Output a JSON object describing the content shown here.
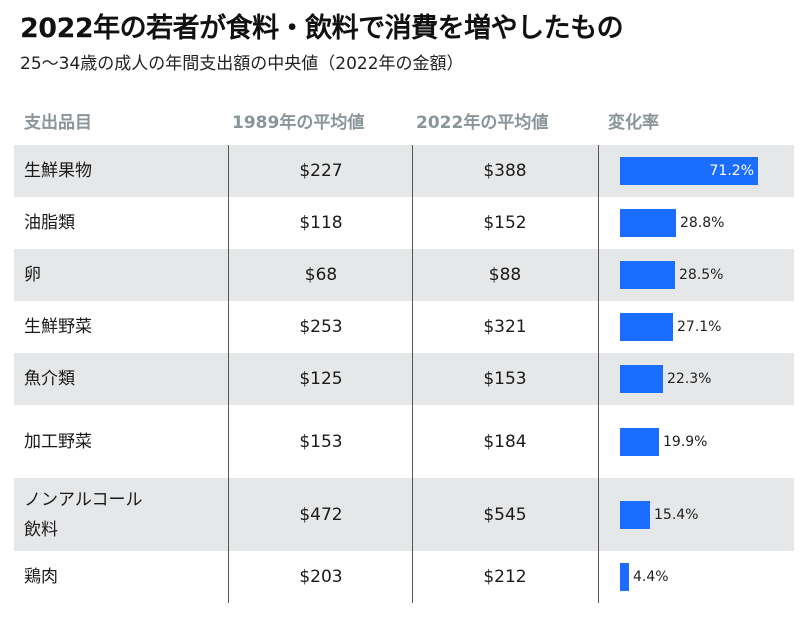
{
  "title": "2022年の若者が食料・飲料で消費を増やしたもの",
  "subtitle": "25〜34歳の成人の年間支出額の中央値（2022年の金額）",
  "colors": {
    "bar": "#1a6dff",
    "shade": "#e6e7e8",
    "header_text": "#8a959a"
  },
  "table": {
    "headers": [
      "支出品目",
      "1989年の平均値",
      "2022年の平均値",
      "変化率"
    ],
    "rows": [
      {
        "item": "生鮮果物",
        "v1989": "$227",
        "v2022": "$388",
        "change": "71.2%"
      },
      {
        "item": "油脂類",
        "v1989": "$118",
        "v2022": "$152",
        "change": "28.8%"
      },
      {
        "item": "卵",
        "v1989": "$68",
        "v2022": "$88",
        "change": "28.5%"
      },
      {
        "item": "生鮮野菜",
        "v1989": "$253",
        "v2022": "$321",
        "change": "27.1%"
      },
      {
        "item": "魚介類",
        "v1989": "$125",
        "v2022": "$153",
        "change": "22.3%"
      },
      {
        "item": "加工野菜",
        "v1989": "$153",
        "v2022": "$184",
        "change": "19.9%"
      },
      {
        "item": "ノンアルコール\n飲料",
        "v1989": "$472",
        "v2022": "$545",
        "change": "15.4%"
      },
      {
        "item": "鶏肉",
        "v1989": "$203",
        "v2022": "$212",
        "change": "4.4%"
      }
    ]
  },
  "chart_data": {
    "type": "table",
    "title": "2022年の若者が食料・飲料で消費を増やしたもの",
    "subtitle": "25〜34歳の成人の年間支出額の中央値（2022年の金額）",
    "columns": [
      "支出品目",
      "1989年の平均値",
      "2022年の平均値",
      "変化率"
    ],
    "categories": [
      "生鮮果物",
      "油脂類",
      "卵",
      "生鮮野菜",
      "魚介類",
      "加工野菜",
      "ノンアルコール飲料",
      "鶏肉"
    ],
    "series": [
      {
        "name": "1989年の平均値",
        "values": [
          227,
          118,
          68,
          253,
          125,
          153,
          472,
          203
        ]
      },
      {
        "name": "2022年の平均値",
        "values": [
          388,
          152,
          88,
          321,
          153,
          184,
          545,
          212
        ]
      },
      {
        "name": "変化率",
        "values": [
          71.2,
          28.8,
          28.5,
          27.1,
          22.3,
          19.9,
          15.4,
          4.4
        ]
      }
    ]
  }
}
